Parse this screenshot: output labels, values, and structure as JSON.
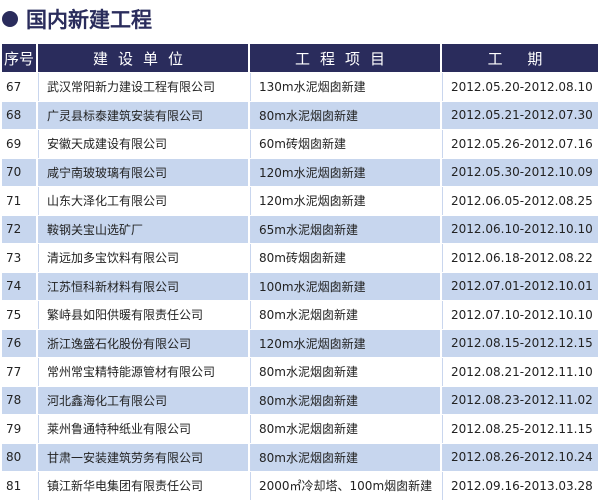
{
  "title": "国内新建工程",
  "colors": {
    "header": "#2a2c5c",
    "alt_row": "#c7d6ee"
  },
  "headers": [
    "序号",
    "建设单位",
    "工程项目",
    "工 期"
  ],
  "rows": [
    [
      "67",
      "武汉常阳新力建设工程有限公司",
      "130m水泥烟囱新建",
      "2012.05.20-2012.08.10"
    ],
    [
      "68",
      "广灵县标泰建筑安装有限公司",
      "80m水泥烟囱新建",
      "2012.05.21-2012.07.30"
    ],
    [
      "69",
      "安徽天成建设有限公司",
      "60m砖烟囱新建",
      "2012.05.26-2012.07.16"
    ],
    [
      "70",
      "咸宁南玻玻璃有限公司",
      "120m水泥烟囱新建",
      "2012.05.30-2012.10.09"
    ],
    [
      "71",
      "山东大泽化工有限公司",
      "120m水泥烟囱新建",
      "2012.06.05-2012.08.25"
    ],
    [
      "72",
      "鞍钢关宝山选矿厂",
      "65m水泥烟囱新建",
      "2012.06.10-2012.10.10"
    ],
    [
      "73",
      "清远加多宝饮料有限公司",
      "80m砖烟囱新建",
      "2012.06.18-2012.08.22"
    ],
    [
      "74",
      "江苏恒科新材料有限公司",
      "100m水泥烟囱新建",
      "2012.07.01-2012.10.01"
    ],
    [
      "75",
      "繁峙县如阳供暖有限责任公司",
      "80m水泥烟囱新建",
      "2012.07.10-2012.10.10"
    ],
    [
      "76",
      "浙江逸盛石化股份有限公司",
      "120m水泥烟囱新建",
      "2012.08.15-2012.12.15"
    ],
    [
      "77",
      "常州常宝精特能源管材有限公司",
      "80m水泥烟囱新建",
      "2012.08.21-2012.11.10"
    ],
    [
      "78",
      "河北鑫海化工有限公司",
      "80m水泥烟囱新建",
      "2012.08.23-2012.11.02"
    ],
    [
      "79",
      "莱州鲁通特种纸业有限公司",
      "80m水泥烟囱新建",
      "2012.08.25-2012.11.15"
    ],
    [
      "80",
      "甘肃一安装建筑劳务有限公司",
      "80m水泥烟囱新建",
      "2012.08.26-2012.10.24"
    ],
    [
      "81",
      "镇江新华电集团有限责任公司",
      "2000㎡冷却塔、100m烟囱新建",
      "2012.09.16-2013.03.28"
    ]
  ]
}
